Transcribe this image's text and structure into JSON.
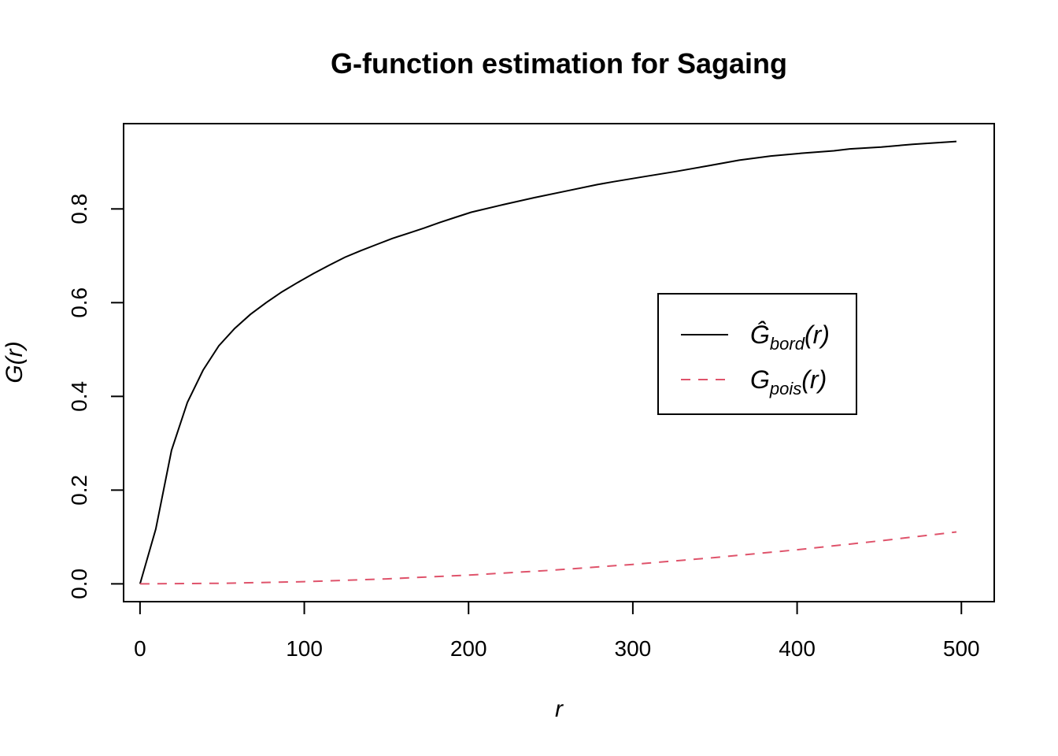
{
  "chart_data": {
    "type": "line",
    "title": "G-function estimation for Sagaing",
    "xlabel": "r",
    "ylabel": "G(r)",
    "xlim": [
      -10,
      520
    ],
    "ylim": [
      -0.038,
      0.982
    ],
    "x_ticks": [
      "0",
      "100",
      "200",
      "300",
      "400",
      "500"
    ],
    "y_ticks": [
      "0.0",
      "0.2",
      "0.4",
      "0.6",
      "0.8"
    ],
    "grid": false,
    "legend_position": "center-right",
    "series": [
      {
        "name": "Ĝbord(r)",
        "legend_main": "Ĝ",
        "legend_sub": "bord",
        "legend_tail": "(r)",
        "color": "#000000",
        "dash": "solid",
        "x": [
          0,
          9.6,
          19.2,
          28.8,
          38.4,
          48,
          57.6,
          67.2,
          76.8,
          86.4,
          96,
          105.6,
          115.2,
          124.8,
          134.4,
          144,
          153.6,
          163.2,
          172.8,
          182.4,
          192,
          201.6,
          220.8,
          240,
          259.2,
          278.4,
          288,
          307.2,
          326.4,
          345.6,
          364.8,
          384,
          403.2,
          422.4,
          432,
          451.2,
          470.4,
          497
        ],
        "y": [
          0,
          0.117,
          0.285,
          0.387,
          0.456,
          0.508,
          0.545,
          0.575,
          0.6,
          0.623,
          0.643,
          0.662,
          0.68,
          0.697,
          0.711,
          0.724,
          0.737,
          0.748,
          0.759,
          0.771,
          0.782,
          0.793,
          0.809,
          0.824,
          0.838,
          0.852,
          0.858,
          0.869,
          0.88,
          0.892,
          0.904,
          0.913,
          0.919,
          0.924,
          0.928,
          0.932,
          0.938,
          0.944
        ]
      },
      {
        "name": "Gpois(r)",
        "legend_main": "G",
        "legend_sub": "pois",
        "legend_tail": "(r)",
        "color": "#DF536B",
        "dash": "dashed",
        "x": [
          0,
          50,
          100,
          150,
          200,
          250,
          300,
          350,
          400,
          450,
          497
        ],
        "y": [
          0,
          0.0012,
          0.0047,
          0.0105,
          0.0186,
          0.0289,
          0.0414,
          0.0561,
          0.0728,
          0.0916,
          0.1107
        ]
      }
    ]
  }
}
